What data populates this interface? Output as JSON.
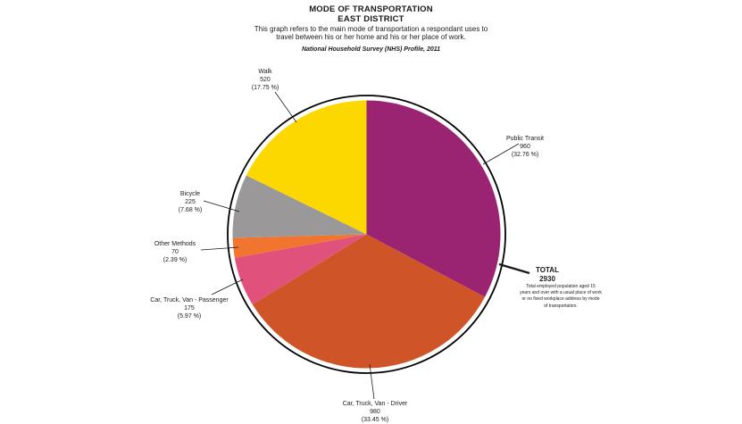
{
  "header": {
    "title": "MODE OF TRANSPORTATION",
    "district": "EAST DISTRICT",
    "description_line1": "This graph refers to the main mode of transportation a respondant uses to",
    "description_line2": "travel between his or her home and his or her place of work.",
    "source": "National Household Survey (NHS) Profile, 2011"
  },
  "chart_data": {
    "type": "pie",
    "title": "MODE OF TRANSPORTATION",
    "subtitle": "EAST DISTRICT",
    "total": 2930,
    "start_angle_deg": 0,
    "direction": "clockwise",
    "legend_position": "none",
    "slices": [
      {
        "label": "Public Transit",
        "value": 960,
        "pct": 32.76,
        "pct_label": "(32.76 %)",
        "color": "#9A2471"
      },
      {
        "label": "Car, Truck, Van - Driver",
        "value": 980,
        "pct": 33.45,
        "pct_label": "(33.45 %)",
        "color": "#CF5529"
      },
      {
        "label": "Car, Truck, Van - Passenger",
        "value": 175,
        "pct": 5.97,
        "pct_label": "(5.97 %)",
        "color": "#E0517B"
      },
      {
        "label": "Other Methods",
        "value": 70,
        "pct": 2.39,
        "pct_label": "(2.39 %)",
        "color": "#F1742F"
      },
      {
        "label": "Bicycle",
        "value": 225,
        "pct": 7.68,
        "pct_label": "(7.68 %)",
        "color": "#9B989A"
      },
      {
        "label": "Walk",
        "value": 520,
        "pct": 17.75,
        "pct_label": "(17.75 %)",
        "color": "#FDD800"
      }
    ]
  },
  "total_note": {
    "title": "TOTAL",
    "value": "2930",
    "line1": "Total employed population aged 15",
    "line2": "years and over with a usual place of work",
    "line3": "or no fixed workplace address by mode",
    "line4": "of transportation."
  }
}
